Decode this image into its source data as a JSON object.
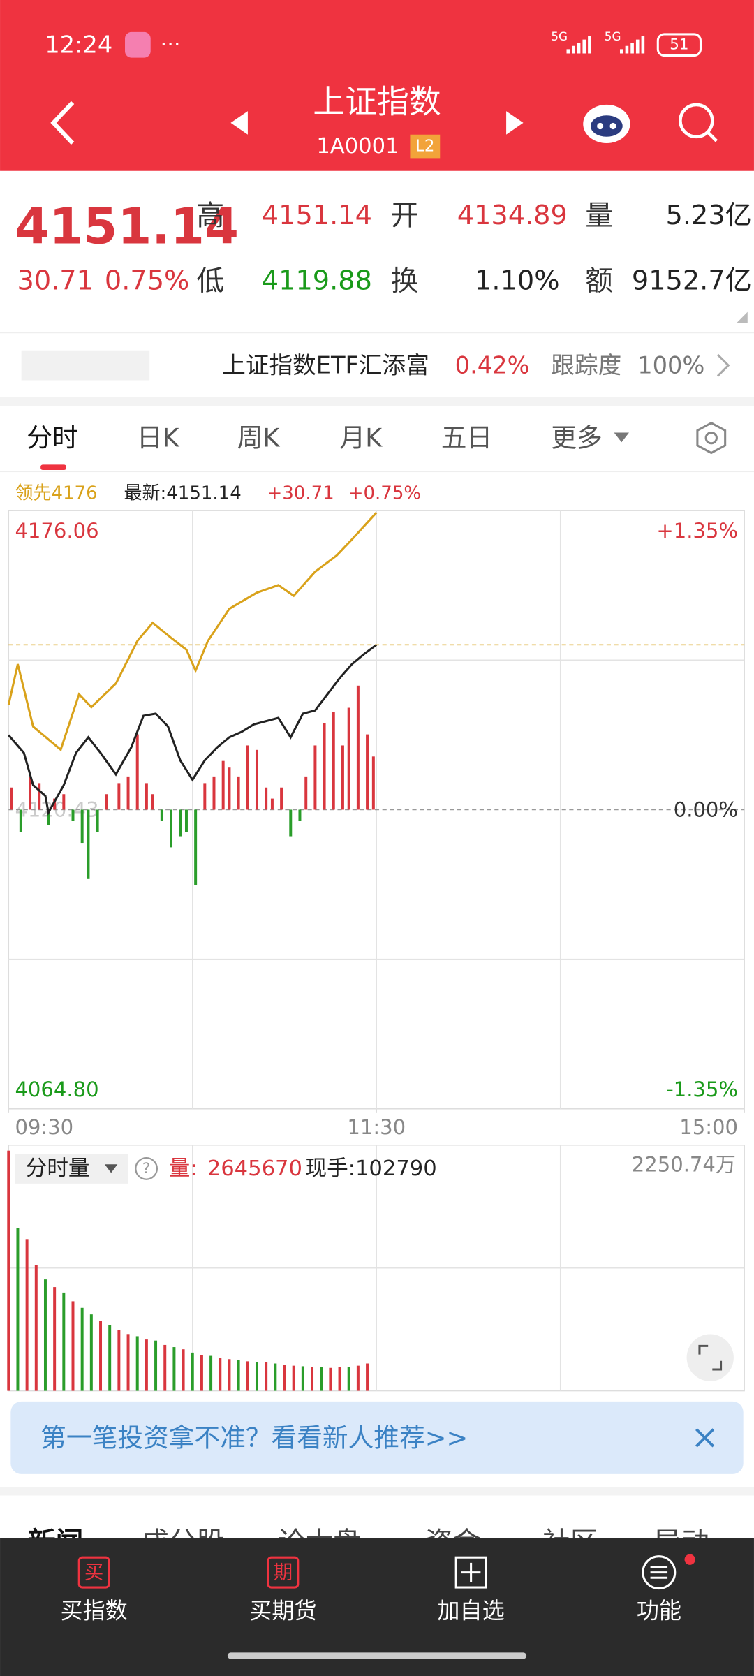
{
  "status_bar": {
    "time": "12:24",
    "net1": "5G",
    "net2": "5G",
    "battery": "51"
  },
  "header": {
    "title": "上证指数",
    "code": "1A0001",
    "badge": "L2"
  },
  "quote": {
    "price": "4151.14",
    "change": "30.71",
    "pct": "0.75%",
    "high_label": "高",
    "high": "4151.14",
    "open_label": "开",
    "open": "4134.89",
    "volume_label": "量",
    "volume": "5.23亿",
    "low_label": "低",
    "low": "4119.88",
    "turnover_label": "换",
    "turnover": "1.10%",
    "amount_label": "额",
    "amount": "9152.7亿"
  },
  "etf": {
    "name": "上证指数ETF汇添富",
    "pct": "0.42%",
    "track_label": "跟踪度",
    "track": "100%"
  },
  "tabs": [
    "分时",
    "日K",
    "周K",
    "月K",
    "五日",
    "更多"
  ],
  "legend": {
    "change": "+30.71",
    "pct": "+0.75%"
  },
  "volume_info": {
    "selector": "分时量",
    "help": "?",
    "volume_label": "量:",
    "volume": "2645670",
    "hand": "现手:102790"
  },
  "chart_data": [
    {
      "type": "line",
      "xlim": [
        0,
        240
      ],
      "xticks": [
        {
          "value": 0,
          "label": "09:30"
        },
        {
          "value": 120,
          "label": "11:30"
        },
        {
          "value": 240,
          "label": "15:00"
        }
      ],
      "ylim": [
        4064.8,
        4176.06
      ],
      "yticks": [
        4176.06,
        4120.43,
        {
          "value": 4064.8,
          "label": "4064.80"
        }
      ],
      "y2lim": [
        -1.35,
        1.35
      ],
      "y2ticks": [
        {
          "value": 1.35,
          "label": "+1.35%"
        },
        {
          "value": 0,
          "label": "0.00%"
        },
        {
          "value": -1.35,
          "label": "-1.35%"
        }
      ],
      "grid": true,
      "series": [
        {
          "name": "最新:4151.14",
          "color": "#222222",
          "x": [
            0,
            5,
            8,
            12,
            13,
            18,
            22,
            26,
            30,
            35,
            40,
            44,
            48,
            52,
            56,
            60,
            64,
            68,
            72,
            76,
            80,
            84,
            88,
            92,
            96,
            100,
            104,
            108,
            112,
            116,
            120
          ],
          "values": [
            4134.3,
            4131.0,
            4125.0,
            4123.0,
            4119.9,
            4125.0,
            4131.0,
            4133.9,
            4131.0,
            4127.0,
            4132.0,
            4137.9,
            4138.3,
            4135.9,
            4129.6,
            4126.0,
            4129.6,
            4132.0,
            4133.9,
            4134.9,
            4136.3,
            4136.9,
            4137.5,
            4133.9,
            4138.3,
            4138.9,
            4141.9,
            4144.9,
            4147.5,
            4149.4,
            4151.1
          ]
        },
        {
          "name": "领先4176",
          "color": "#d9a21b",
          "x": [
            0,
            3,
            8,
            13,
            17,
            23,
            27,
            35,
            42,
            47,
            53,
            58,
            61,
            65,
            72,
            81,
            88,
            93,
            100,
            107,
            112,
            120
          ],
          "values": [
            4139.9,
            4147.5,
            4135.9,
            4133.5,
            4131.6,
            4141.9,
            4139.5,
            4143.9,
            4151.8,
            4155.2,
            4152.4,
            4150.2,
            4146.3,
            4151.8,
            4157.8,
            4160.8,
            4162.2,
            4160.2,
            4164.7,
            4167.7,
            4170.7,
            4175.7
          ]
        },
        {
          "type": "bar",
          "axis": "y2",
          "color": "#d9363e",
          "down_color": "#2a9d2a",
          "x": [
            1,
            4,
            7,
            10,
            13,
            15,
            18,
            21,
            24,
            26,
            29,
            32,
            36,
            39,
            42,
            45,
            47,
            50,
            53,
            56,
            58,
            61,
            64,
            67,
            70,
            72,
            75,
            78,
            81,
            84,
            86,
            89,
            92,
            95,
            97,
            100,
            103,
            106,
            109,
            111,
            114,
            117,
            119
          ],
          "values": [
            0.1,
            -0.1,
            0.15,
            0.12,
            -0.07,
            0.05,
            0.07,
            -0.05,
            -0.15,
            -0.31,
            -0.1,
            0.07,
            0.12,
            0.15,
            0.34,
            0.12,
            0.07,
            -0.05,
            -0.17,
            -0.12,
            -0.1,
            -0.34,
            0.12,
            0.15,
            0.22,
            0.19,
            0.15,
            0.29,
            0.27,
            0.1,
            0.05,
            0.1,
            -0.12,
            -0.05,
            0.15,
            0.29,
            0.39,
            0.44,
            0.29,
            0.46,
            0.56,
            0.34,
            0.24
          ]
        }
      ]
    },
    {
      "type": "bar",
      "xlim": [
        0,
        240
      ],
      "ylim": [
        0,
        2250.74
      ],
      "yticks": [
        {
          "value": 2250.74,
          "label": "2250.74万"
        }
      ],
      "x": [
        0,
        3,
        6,
        9,
        12,
        15,
        18,
        21,
        24,
        27,
        30,
        33,
        36,
        39,
        42,
        45,
        48,
        51,
        54,
        57,
        60,
        63,
        66,
        69,
        72,
        75,
        78,
        81,
        84,
        87,
        90,
        93,
        96,
        99,
        102,
        105,
        108,
        111,
        114,
        117
      ],
      "values": [
        2200,
        1490,
        1390,
        1150,
        1020,
        950,
        900,
        820,
        760,
        700,
        640,
        600,
        560,
        520,
        500,
        470,
        460,
        420,
        400,
        380,
        350,
        330,
        320,
        300,
        290,
        280,
        270,
        265,
        260,
        250,
        240,
        230,
        225,
        220,
        215,
        210,
        220,
        215,
        230,
        250
      ],
      "colors": [
        "#d9363e",
        "#2a9d2a",
        "#d9363e",
        "#d9363e",
        "#2a9d2a",
        "#d9363e",
        "#2a9d2a",
        "#d9363e",
        "#2a9d2a",
        "#2a9d2a",
        "#d9363e",
        "#2a9d2a",
        "#d9363e",
        "#d9363e",
        "#2a9d2a",
        "#d9363e",
        "#2a9d2a",
        "#d9363e",
        "#2a9d2a",
        "#d9363e",
        "#2a9d2a",
        "#d9363e",
        "#2a9d2a",
        "#d9363e",
        "#d9363e",
        "#2a9d2a",
        "#d9363e",
        "#2a9d2a",
        "#d9363e",
        "#2a9d2a",
        "#d9363e",
        "#d9363e",
        "#2a9d2a",
        "#d9363e",
        "#2a9d2a",
        "#d9363e",
        "#d9363e",
        "#2a9d2a",
        "#d9363e",
        "#d9363e"
      ]
    }
  ],
  "banner": {
    "text": "第一笔投资拿不准？看看新人推荐>>"
  },
  "section_tabs": [
    "新闻",
    "成分股",
    "论大盘",
    "资金",
    "社区",
    "异动"
  ],
  "bottom_nav": [
    {
      "icon": "买",
      "label": "买指数"
    },
    {
      "icon": "期",
      "label": "买期货"
    },
    {
      "label": "加自选"
    },
    {
      "label": "功能"
    }
  ]
}
